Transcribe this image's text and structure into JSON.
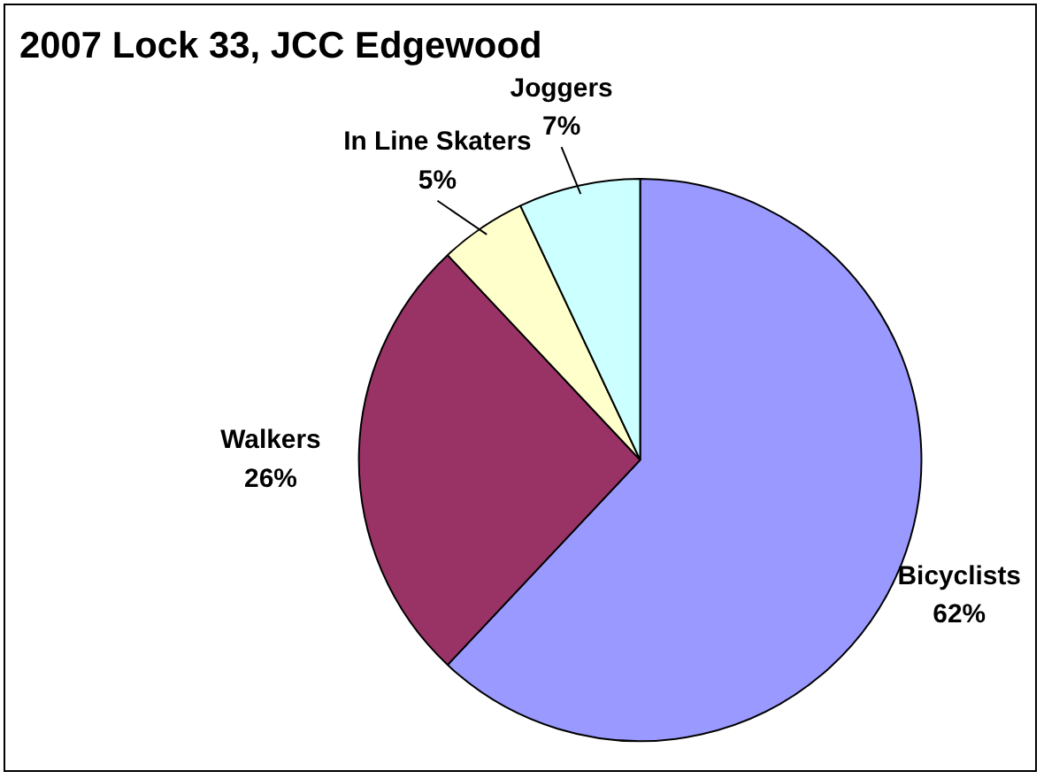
{
  "chart_data": {
    "type": "pie",
    "title": "2007 Lock 33, JCC Edgewood",
    "categories": [
      "Bicyclists",
      "Walkers",
      "In Line Skaters",
      "Joggers"
    ],
    "values": [
      62,
      26,
      5,
      7
    ],
    "colors": [
      "#9999ff",
      "#993366",
      "#ffffcc",
      "#ccffff"
    ],
    "value_labels": [
      "62%",
      "26%",
      "5%",
      "7%"
    ],
    "legend": false
  }
}
